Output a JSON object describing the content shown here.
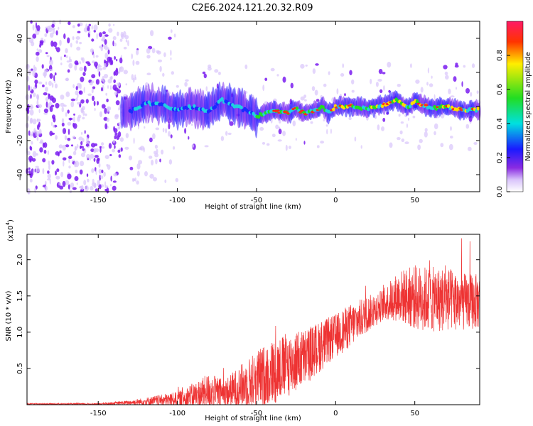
{
  "title": "C2E6.2024.121.20.32.R09",
  "colors": {
    "snr_line": "#ee3333",
    "spectrogram_noise": "#7a1cf0",
    "spectrogram_noise_faint": "#d9c4fb",
    "axis": "#000000"
  },
  "chart_data": [
    {
      "type": "heatmap",
      "xlabel": "Height of straight line (km)",
      "ylabel": "Frequency (Hz)",
      "xlim": [
        -195,
        91
      ],
      "ylim": [
        -50,
        50
      ],
      "xticks": [
        -150,
        -100,
        -50,
        0,
        50
      ],
      "yticks": [
        -40,
        -20,
        0,
        20,
        40
      ],
      "ridge_frequency_hz": [
        {
          "x": -130,
          "y": -3
        },
        {
          "x": -120,
          "y": 2
        },
        {
          "x": -110,
          "y": 1
        },
        {
          "x": -100,
          "y": -2
        },
        {
          "x": -90,
          "y": 0
        },
        {
          "x": -80,
          "y": -3
        },
        {
          "x": -72,
          "y": 4
        },
        {
          "x": -65,
          "y": 1
        },
        {
          "x": -55,
          "y": -3
        },
        {
          "x": -50,
          "y": -6
        },
        {
          "x": -40,
          "y": -2
        },
        {
          "x": -30,
          "y": -4
        },
        {
          "x": -25,
          "y": -1
        },
        {
          "x": -20,
          "y": -4
        },
        {
          "x": -15,
          "y": -3
        },
        {
          "x": -8,
          "y": 0
        },
        {
          "x": -5,
          "y": -4
        },
        {
          "x": 0,
          "y": 0
        },
        {
          "x": 10,
          "y": 0
        },
        {
          "x": 20,
          "y": -1
        },
        {
          "x": 30,
          "y": 1
        },
        {
          "x": 38,
          "y": 4
        },
        {
          "x": 45,
          "y": -1
        },
        {
          "x": 50,
          "y": 3
        },
        {
          "x": 60,
          "y": -1
        },
        {
          "x": 70,
          "y": 0
        },
        {
          "x": 80,
          "y": -2
        },
        {
          "x": 90,
          "y": -2
        }
      ],
      "colorbar": {
        "label": "Normalized spectral amplitude",
        "range": [
          0.0,
          1.0
        ],
        "ticks": [
          0.0,
          0.2,
          0.4,
          0.6,
          0.8
        ]
      }
    },
    {
      "type": "line",
      "xlabel": "Height of straight line (km)",
      "ylabel": "SNR (10 * v/v)",
      "ymultiplier": "(x10",
      "ymultiplier_exp": "4",
      "ymultiplier_close": ")",
      "xlim": [
        -195,
        91
      ],
      "ylim": [
        0,
        2.35
      ],
      "xticks": [
        -150,
        -100,
        -50,
        0,
        50
      ],
      "yticks": [
        0.5,
        1.0,
        1.5,
        2.0
      ],
      "ytick_labels": [
        "0.5",
        "1.0",
        "1.5",
        "2.0"
      ],
      "series": [
        {
          "values_envelope": [
            {
              "x": -195,
              "mean": 0.01,
              "spread": 0.01
            },
            {
              "x": -150,
              "mean": 0.01,
              "spread": 0.01
            },
            {
              "x": -130,
              "mean": 0.03,
              "spread": 0.03
            },
            {
              "x": -110,
              "mean": 0.06,
              "spread": 0.08
            },
            {
              "x": -100,
              "mean": 0.08,
              "spread": 0.1
            },
            {
              "x": -90,
              "mean": 0.12,
              "spread": 0.18
            },
            {
              "x": -80,
              "mean": 0.18,
              "spread": 0.25
            },
            {
              "x": -70,
              "mean": 0.15,
              "spread": 0.2
            },
            {
              "x": -60,
              "mean": 0.25,
              "spread": 0.3
            },
            {
              "x": -50,
              "mean": 0.35,
              "spread": 0.4
            },
            {
              "x": -40,
              "mean": 0.45,
              "spread": 0.45
            },
            {
              "x": -30,
              "mean": 0.55,
              "spread": 0.45
            },
            {
              "x": -20,
              "mean": 0.65,
              "spread": 0.4
            },
            {
              "x": -10,
              "mean": 0.8,
              "spread": 0.35
            },
            {
              "x": 0,
              "mean": 0.95,
              "spread": 0.3
            },
            {
              "x": 10,
              "mean": 1.1,
              "spread": 0.3
            },
            {
              "x": 20,
              "mean": 1.25,
              "spread": 0.25
            },
            {
              "x": 30,
              "mean": 1.38,
              "spread": 0.22
            },
            {
              "x": 40,
              "mean": 1.5,
              "spread": 0.35
            },
            {
              "x": 50,
              "mean": 1.48,
              "spread": 0.45
            },
            {
              "x": 60,
              "mean": 1.45,
              "spread": 0.45
            },
            {
              "x": 70,
              "mean": 1.45,
              "spread": 0.45
            },
            {
              "x": 80,
              "mean": 1.42,
              "spread": 0.4
            },
            {
              "x": 91,
              "mean": 1.42,
              "spread": 0.38
            }
          ]
        }
      ]
    }
  ]
}
